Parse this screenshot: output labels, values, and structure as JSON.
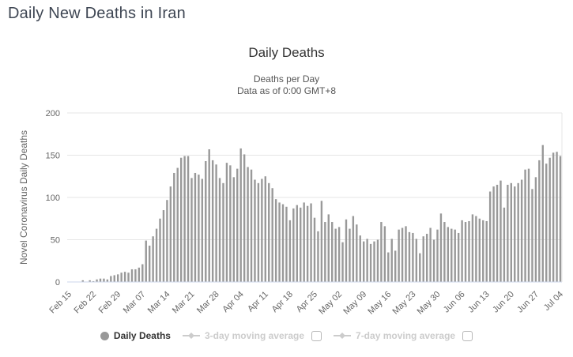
{
  "page": {
    "title": "Daily New Deaths in Iran"
  },
  "chart": {
    "title": "Daily Deaths",
    "subtitle_line1": "Deaths per Day",
    "subtitle_line2": "Data as of 0:00 GMT+8",
    "y_axis_title": "Novel Coronavirus Daily Deaths"
  },
  "legend": {
    "items": [
      {
        "label": "Daily Deaths",
        "marker": "circle",
        "active": true,
        "has_checkbox": false
      },
      {
        "label": "3-day moving average",
        "marker": "line-diamond",
        "active": false,
        "has_checkbox": true,
        "checked": false
      },
      {
        "label": "7-day moving average",
        "marker": "line-diamond",
        "active": false,
        "has_checkbox": true,
        "checked": false
      }
    ]
  },
  "colors": {
    "bar": "#999999",
    "gridline": "#e6e6e6",
    "axis_line": "#ccd6eb",
    "axis_label": "#666666",
    "title": "#333333",
    "subtitle": "#555555",
    "heading": "#3e4653",
    "legend_active_text": "#333333",
    "legend_disabled": "#cccccc"
  },
  "chart_data": {
    "type": "bar",
    "title": "Daily Deaths",
    "subtitle": "Deaths per Day — Data as of 0:00 GMT+8",
    "xlabel": "",
    "ylabel": "Novel Coronavirus Daily Deaths",
    "ylim": [
      0,
      200
    ],
    "yticks": [
      0,
      50,
      100,
      150,
      200
    ],
    "x_tick_every": 7,
    "grid": true,
    "legend_position": "bottom",
    "series_name": "Daily Deaths",
    "categories": [
      "Feb 15",
      "Feb 16",
      "Feb 17",
      "Feb 18",
      "Feb 19",
      "Feb 20",
      "Feb 21",
      "Feb 22",
      "Feb 23",
      "Feb 24",
      "Feb 25",
      "Feb 26",
      "Feb 27",
      "Feb 28",
      "Feb 29",
      "Mar 01",
      "Mar 02",
      "Mar 03",
      "Mar 04",
      "Mar 05",
      "Mar 06",
      "Mar 07",
      "Mar 08",
      "Mar 09",
      "Mar 10",
      "Mar 11",
      "Mar 12",
      "Mar 13",
      "Mar 14",
      "Mar 15",
      "Mar 16",
      "Mar 17",
      "Mar 18",
      "Mar 19",
      "Mar 20",
      "Mar 21",
      "Mar 22",
      "Mar 23",
      "Mar 24",
      "Mar 25",
      "Mar 26",
      "Mar 27",
      "Mar 28",
      "Mar 29",
      "Mar 30",
      "Mar 31",
      "Apr 01",
      "Apr 02",
      "Apr 03",
      "Apr 04",
      "Apr 05",
      "Apr 06",
      "Apr 07",
      "Apr 08",
      "Apr 09",
      "Apr 10",
      "Apr 11",
      "Apr 12",
      "Apr 13",
      "Apr 14",
      "Apr 15",
      "Apr 16",
      "Apr 17",
      "Apr 18",
      "Apr 19",
      "Apr 20",
      "Apr 21",
      "Apr 22",
      "Apr 23",
      "Apr 24",
      "Apr 25",
      "Apr 26",
      "Apr 27",
      "Apr 28",
      "Apr 29",
      "Apr 30",
      "May 01",
      "May 02",
      "May 03",
      "May 04",
      "May 05",
      "May 06",
      "May 07",
      "May 08",
      "May 09",
      "May 10",
      "May 11",
      "May 12",
      "May 13",
      "May 14",
      "May 15",
      "May 16",
      "May 17",
      "May 18",
      "May 19",
      "May 20",
      "May 21",
      "May 22",
      "May 23",
      "May 24",
      "May 25",
      "May 26",
      "May 27",
      "May 28",
      "May 29",
      "May 30",
      "May 31",
      "Jun 01",
      "Jun 02",
      "Jun 03",
      "Jun 04",
      "Jun 05",
      "Jun 06",
      "Jun 07",
      "Jun 08",
      "Jun 09",
      "Jun 10",
      "Jun 11",
      "Jun 12",
      "Jun 13",
      "Jun 14",
      "Jun 15",
      "Jun 16",
      "Jun 17",
      "Jun 18",
      "Jun 19",
      "Jun 20",
      "Jun 21",
      "Jun 22",
      "Jun 23",
      "Jun 24",
      "Jun 25",
      "Jun 26",
      "Jun 27",
      "Jun 28",
      "Jun 29",
      "Jun 30",
      "Jul 01",
      "Jul 02",
      "Jul 03",
      "Jul 04"
    ],
    "values": [
      0,
      0,
      0,
      0,
      2,
      0,
      2,
      1,
      3,
      4,
      4,
      3,
      7,
      8,
      9,
      11,
      12,
      11,
      15,
      15,
      17,
      21,
      49,
      43,
      54,
      63,
      75,
      85,
      97,
      113,
      129,
      135,
      147,
      149,
      149,
      123,
      129,
      127,
      122,
      143,
      157,
      144,
      139,
      123,
      117,
      141,
      138,
      124,
      134,
      158,
      151,
      136,
      133,
      121,
      117,
      122,
      125,
      117,
      111,
      98,
      94,
      92,
      89,
      73,
      87,
      91,
      88,
      94,
      90,
      93,
      76,
      60,
      96,
      71,
      80,
      71,
      63,
      65,
      47,
      74,
      63,
      78,
      68,
      55,
      48,
      51,
      45,
      48,
      50,
      71,
      66,
      35,
      51,
      37,
      62,
      64,
      66,
      59,
      58,
      51,
      34,
      54,
      57,
      64,
      50,
      62,
      81,
      71,
      65,
      63,
      62,
      58,
      73,
      71,
      72,
      80,
      78,
      75,
      73,
      72,
      107,
      113,
      115,
      120,
      88,
      115,
      117,
      113,
      117,
      121,
      133,
      134,
      110,
      124,
      144,
      162,
      140,
      147,
      153,
      154,
      149
    ]
  }
}
